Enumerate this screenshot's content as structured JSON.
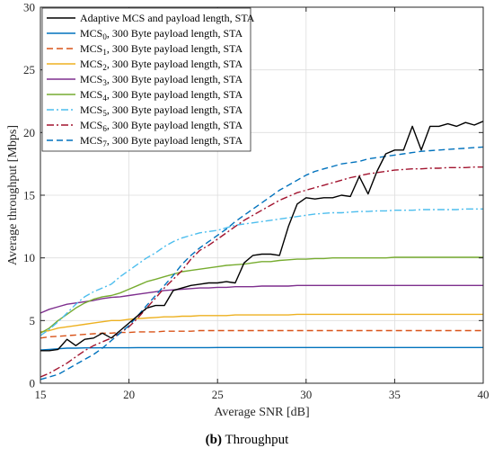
{
  "caption": {
    "panel": "(b)",
    "text": "Throughput"
  },
  "chart_data": {
    "type": "line",
    "xlabel": "Average SNR [dB]",
    "ylabel": "Average throughput [Mbps]",
    "xlim": [
      15,
      40
    ],
    "ylim": [
      0,
      30
    ],
    "xticks": [
      15,
      20,
      25,
      30,
      35,
      40
    ],
    "yticks": [
      0,
      5,
      10,
      15,
      20,
      25,
      30
    ],
    "grid": true,
    "legend_position": "top-left",
    "x": [
      15,
      15.5,
      16,
      16.5,
      17,
      17.5,
      18,
      18.5,
      19,
      19.5,
      20,
      20.5,
      21,
      21.5,
      22,
      22.5,
      23,
      23.5,
      24,
      24.5,
      25,
      25.5,
      26,
      26.5,
      27,
      27.5,
      28,
      28.5,
      29,
      29.5,
      30,
      30.5,
      31,
      31.5,
      32,
      32.5,
      33,
      33.5,
      34,
      34.5,
      35,
      35.5,
      36,
      36.5,
      37,
      37.5,
      38,
      38.5,
      39,
      39.5,
      40
    ],
    "series": [
      {
        "name": "Adaptive MCS and payload length, STA",
        "prefix": "Adaptive MCS and payload length, STA",
        "sub": "",
        "suffix": "",
        "color": "#000000",
        "dash": "",
        "values": [
          2.6,
          2.6,
          2.7,
          3.5,
          3.0,
          3.5,
          3.6,
          4.0,
          3.6,
          4.2,
          4.8,
          5.4,
          6.0,
          6.2,
          6.2,
          7.4,
          7.6,
          7.8,
          7.9,
          8.0,
          8.0,
          8.1,
          8.0,
          9.6,
          10.2,
          10.3,
          10.3,
          10.2,
          12.5,
          14.3,
          14.8,
          14.7,
          14.8,
          14.8,
          15.0,
          14.9,
          16.5,
          15.1,
          16.9,
          18.3,
          18.6,
          18.6,
          20.5,
          18.6,
          20.5,
          20.5,
          20.7,
          20.5,
          20.8,
          20.6,
          20.9
        ]
      },
      {
        "name": "MCS0, 300 Byte payload length, STA",
        "prefix": "MCS",
        "sub": "0",
        "suffix": ", 300 Byte payload length, STA",
        "color": "#0072BD",
        "dash": "",
        "values": [
          2.65,
          2.7,
          2.75,
          2.8,
          2.8,
          2.82,
          2.82,
          2.83,
          2.83,
          2.83,
          2.83,
          2.84,
          2.84,
          2.84,
          2.84,
          2.84,
          2.84,
          2.84,
          2.84,
          2.84,
          2.85,
          2.85,
          2.85,
          2.85,
          2.85,
          2.85,
          2.85,
          2.85,
          2.85,
          2.85,
          2.85,
          2.85,
          2.85,
          2.85,
          2.85,
          2.85,
          2.85,
          2.85,
          2.85,
          2.85,
          2.85,
          2.85,
          2.85,
          2.85,
          2.85,
          2.85,
          2.85,
          2.85,
          2.85,
          2.85,
          2.85
        ]
      },
      {
        "name": "MCS1, 300 Byte payload length, STA",
        "prefix": "MCS",
        "sub": "1",
        "suffix": ", 300 Byte payload length, STA",
        "color": "#D95319",
        "dash": "7,4",
        "values": [
          3.6,
          3.7,
          3.75,
          3.8,
          3.85,
          3.9,
          3.95,
          4.0,
          4.0,
          4.05,
          4.05,
          4.1,
          4.1,
          4.1,
          4.15,
          4.15,
          4.15,
          4.15,
          4.2,
          4.2,
          4.2,
          4.2,
          4.2,
          4.2,
          4.2,
          4.2,
          4.2,
          4.2,
          4.2,
          4.2,
          4.2,
          4.2,
          4.2,
          4.2,
          4.2,
          4.2,
          4.2,
          4.2,
          4.2,
          4.2,
          4.2,
          4.2,
          4.2,
          4.2,
          4.2,
          4.2,
          4.2,
          4.2,
          4.2,
          4.2,
          4.2
        ]
      },
      {
        "name": "MCS2, 300 Byte payload length, STA",
        "prefix": "MCS",
        "sub": "2",
        "suffix": ", 300 Byte payload length, STA",
        "color": "#EDB120",
        "dash": "",
        "values": [
          4.1,
          4.2,
          4.4,
          4.5,
          4.6,
          4.7,
          4.8,
          4.9,
          5.0,
          5.0,
          5.1,
          5.15,
          5.2,
          5.25,
          5.3,
          5.3,
          5.35,
          5.35,
          5.4,
          5.4,
          5.4,
          5.4,
          5.45,
          5.45,
          5.45,
          5.45,
          5.45,
          5.45,
          5.45,
          5.5,
          5.5,
          5.5,
          5.5,
          5.5,
          5.5,
          5.5,
          5.5,
          5.5,
          5.5,
          5.5,
          5.5,
          5.5,
          5.5,
          5.5,
          5.5,
          5.5,
          5.5,
          5.5,
          5.5,
          5.5,
          5.5
        ]
      },
      {
        "name": "MCS3, 300 Byte payload length, STA",
        "prefix": "MCS",
        "sub": "3",
        "suffix": ", 300 Byte payload length, STA",
        "color": "#7E2F8E",
        "dash": "",
        "values": [
          5.6,
          5.9,
          6.1,
          6.3,
          6.4,
          6.5,
          6.6,
          6.75,
          6.85,
          6.9,
          7.0,
          7.1,
          7.2,
          7.3,
          7.4,
          7.45,
          7.5,
          7.55,
          7.6,
          7.6,
          7.65,
          7.65,
          7.7,
          7.7,
          7.7,
          7.75,
          7.75,
          7.75,
          7.75,
          7.8,
          7.8,
          7.8,
          7.8,
          7.8,
          7.8,
          7.8,
          7.8,
          7.8,
          7.8,
          7.8,
          7.8,
          7.8,
          7.8,
          7.8,
          7.8,
          7.8,
          7.8,
          7.8,
          7.8,
          7.8,
          7.8
        ]
      },
      {
        "name": "MCS4, 300 Byte payload length, STA",
        "prefix": "MCS",
        "sub": "4",
        "suffix": ", 300 Byte payload length, STA",
        "color": "#77AC30",
        "dash": "",
        "values": [
          4.0,
          4.4,
          5.0,
          5.5,
          6.0,
          6.4,
          6.7,
          6.9,
          7.0,
          7.2,
          7.5,
          7.8,
          8.1,
          8.3,
          8.5,
          8.7,
          8.9,
          9.0,
          9.1,
          9.2,
          9.3,
          9.4,
          9.45,
          9.5,
          9.6,
          9.7,
          9.7,
          9.8,
          9.85,
          9.9,
          9.9,
          9.95,
          9.95,
          10.0,
          10.0,
          10.0,
          10.0,
          10.0,
          10.0,
          10.0,
          10.05,
          10.05,
          10.05,
          10.05,
          10.05,
          10.05,
          10.05,
          10.05,
          10.05,
          10.05,
          10.05
        ]
      },
      {
        "name": "MCS5, 300 Byte payload length, STA",
        "prefix": "MCS",
        "sub": "5",
        "suffix": ", 300 Byte payload length, STA",
        "color": "#4DBEEE",
        "dash": "8,3,2,3",
        "values": [
          3.8,
          4.3,
          4.9,
          5.6,
          6.3,
          6.9,
          7.3,
          7.6,
          7.9,
          8.5,
          9.0,
          9.5,
          10.0,
          10.4,
          10.9,
          11.3,
          11.6,
          11.8,
          12.0,
          12.1,
          12.2,
          12.4,
          12.6,
          12.7,
          12.8,
          12.9,
          13.0,
          13.1,
          13.2,
          13.3,
          13.4,
          13.5,
          13.55,
          13.6,
          13.6,
          13.65,
          13.7,
          13.7,
          13.75,
          13.75,
          13.8,
          13.8,
          13.8,
          13.85,
          13.85,
          13.85,
          13.85,
          13.85,
          13.9,
          13.9,
          13.9
        ]
      },
      {
        "name": "MCS6, 300 Byte payload length, STA",
        "prefix": "MCS",
        "sub": "6",
        "suffix": ", 300 Byte payload length, STA",
        "color": "#A2142F",
        "dash": "8,3,2,3",
        "values": [
          0.5,
          0.8,
          1.2,
          1.6,
          2.1,
          2.6,
          3.0,
          3.3,
          3.6,
          4.0,
          4.5,
          5.2,
          6.0,
          6.8,
          7.6,
          8.3,
          9.0,
          9.9,
          10.6,
          11.0,
          11.5,
          12.0,
          12.5,
          13.0,
          13.4,
          13.8,
          14.2,
          14.6,
          14.9,
          15.2,
          15.4,
          15.6,
          15.8,
          16.0,
          16.2,
          16.4,
          16.55,
          16.7,
          16.8,
          16.9,
          17.0,
          17.05,
          17.1,
          17.1,
          17.15,
          17.15,
          17.2,
          17.2,
          17.2,
          17.25,
          17.25
        ]
      },
      {
        "name": "MCS7, 300 Byte payload length, STA",
        "prefix": "MCS",
        "sub": "7",
        "suffix": ", 300 Byte payload length, STA",
        "color": "#0072BD",
        "dash": "7,4",
        "values": [
          0.3,
          0.5,
          0.7,
          1.1,
          1.5,
          1.9,
          2.3,
          2.8,
          3.4,
          4.0,
          4.6,
          5.4,
          6.2,
          7.0,
          7.8,
          8.6,
          9.5,
          10.2,
          10.8,
          11.3,
          11.8,
          12.3,
          12.9,
          13.4,
          13.9,
          14.4,
          14.9,
          15.4,
          15.8,
          16.2,
          16.6,
          16.9,
          17.1,
          17.3,
          17.5,
          17.6,
          17.7,
          17.9,
          18.0,
          18.1,
          18.2,
          18.3,
          18.4,
          18.5,
          18.55,
          18.6,
          18.65,
          18.7,
          18.75,
          18.8,
          18.85
        ]
      }
    ]
  }
}
